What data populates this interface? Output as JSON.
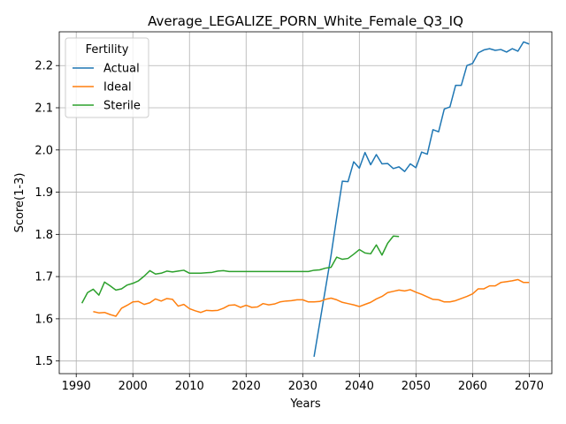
{
  "chart_data": {
    "type": "line",
    "title": "Average_LEGALIZE_PORN_White_Female_Q3_IQ",
    "xlabel": "Years",
    "ylabel": "Score(1-3)",
    "xlim": [
      1987,
      2074
    ],
    "ylim": [
      1.47,
      2.28
    ],
    "xticks": [
      1990,
      2000,
      2010,
      2020,
      2030,
      2040,
      2050,
      2060,
      2070
    ],
    "yticks": [
      1.5,
      1.6,
      1.7,
      1.8,
      1.9,
      2.0,
      2.1,
      2.2
    ],
    "ytick_labels": [
      "1.5",
      "1.6",
      "1.7",
      "1.8",
      "1.9",
      "2.0",
      "2.1",
      "2.2"
    ],
    "grid": true,
    "legend": {
      "title": "Fertility",
      "position": "top-left"
    },
    "series": [
      {
        "name": "Actual",
        "color": "#1f77b4",
        "x": [
          2032,
          2033,
          2034,
          2035,
          2036,
          2037,
          2038,
          2039,
          2040,
          2041,
          2042,
          2043,
          2044,
          2045,
          2046,
          2047,
          2048,
          2049,
          2050,
          2051,
          2052,
          2053,
          2054,
          2055,
          2056,
          2057,
          2058,
          2059,
          2060,
          2061,
          2062,
          2063,
          2064,
          2065,
          2066,
          2067,
          2068,
          2069,
          2070
        ],
        "y": [
          1.51,
          1.59,
          1.67,
          1.75,
          1.84,
          1.926,
          1.925,
          1.972,
          1.957,
          1.994,
          1.965,
          1.989,
          1.967,
          1.968,
          1.956,
          1.96,
          1.949,
          1.967,
          1.958,
          1.995,
          1.99,
          2.048,
          2.043,
          2.097,
          2.102,
          2.153,
          2.153,
          2.2,
          2.205,
          2.23,
          2.237,
          2.24,
          2.236,
          2.238,
          2.232,
          2.24,
          2.234,
          2.256,
          2.251
        ]
      },
      {
        "name": "Ideal",
        "color": "#ff7f0e",
        "x": [
          1993,
          1994,
          1995,
          1996,
          1997,
          1998,
          1999,
          2000,
          2001,
          2002,
          2003,
          2004,
          2005,
          2006,
          2007,
          2008,
          2009,
          2010,
          2011,
          2012,
          2013,
          2014,
          2015,
          2016,
          2017,
          2018,
          2019,
          2020,
          2021,
          2022,
          2023,
          2024,
          2025,
          2026,
          2027,
          2028,
          2029,
          2030,
          2031,
          2032,
          2033,
          2034,
          2035,
          2036,
          2037,
          2038,
          2039,
          2040,
          2041,
          2042,
          2043,
          2044,
          2045,
          2046,
          2047,
          2048,
          2049,
          2050,
          2051,
          2052,
          2053,
          2054,
          2055,
          2056,
          2057,
          2058,
          2059,
          2060,
          2061,
          2062,
          2063,
          2064,
          2065,
          2066,
          2067,
          2068,
          2069,
          2070
        ],
        "y": [
          1.617,
          1.614,
          1.615,
          1.61,
          1.606,
          1.625,
          1.632,
          1.64,
          1.641,
          1.634,
          1.638,
          1.647,
          1.642,
          1.648,
          1.646,
          1.63,
          1.634,
          1.624,
          1.619,
          1.615,
          1.62,
          1.619,
          1.62,
          1.625,
          1.632,
          1.633,
          1.627,
          1.632,
          1.627,
          1.628,
          1.636,
          1.633,
          1.635,
          1.64,
          1.642,
          1.643,
          1.645,
          1.645,
          1.64,
          1.64,
          1.641,
          1.646,
          1.649,
          1.645,
          1.639,
          1.636,
          1.633,
          1.629,
          1.634,
          1.639,
          1.647,
          1.653,
          1.662,
          1.665,
          1.668,
          1.666,
          1.669,
          1.663,
          1.658,
          1.652,
          1.646,
          1.645,
          1.64,
          1.64,
          1.643,
          1.648,
          1.653,
          1.659,
          1.671,
          1.671,
          1.678,
          1.678,
          1.686,
          1.688,
          1.69,
          1.693,
          1.686,
          1.686
        ]
      },
      {
        "name": "Sterile",
        "color": "#2ca02c",
        "x": [
          1991,
          1992,
          1993,
          1994,
          1995,
          1996,
          1997,
          1998,
          1999,
          2000,
          2001,
          2002,
          2003,
          2004,
          2005,
          2006,
          2007,
          2008,
          2009,
          2010,
          2011,
          2012,
          2013,
          2014,
          2015,
          2016,
          2017,
          2018,
          2019,
          2020,
          2021,
          2022,
          2023,
          2024,
          2025,
          2026,
          2027,
          2028,
          2029,
          2030,
          2031,
          2032,
          2033,
          2034,
          2035,
          2036,
          2037,
          2038,
          2039,
          2040,
          2041,
          2042,
          2043,
          2044,
          2045,
          2046,
          2047
        ],
        "y": [
          1.637,
          1.662,
          1.67,
          1.656,
          1.687,
          1.678,
          1.668,
          1.671,
          1.68,
          1.684,
          1.69,
          1.701,
          1.714,
          1.706,
          1.708,
          1.713,
          1.711,
          1.713,
          1.715,
          1.708,
          1.708,
          1.708,
          1.709,
          1.71,
          1.713,
          1.714,
          1.712,
          1.712,
          1.712,
          1.712,
          1.712,
          1.712,
          1.712,
          1.712,
          1.712,
          1.712,
          1.712,
          1.712,
          1.712,
          1.712,
          1.712,
          1.715,
          1.716,
          1.72,
          1.722,
          1.746,
          1.741,
          1.743,
          1.753,
          1.764,
          1.756,
          1.754,
          1.775,
          1.751,
          1.779,
          1.796,
          1.795
        ]
      }
    ]
  }
}
